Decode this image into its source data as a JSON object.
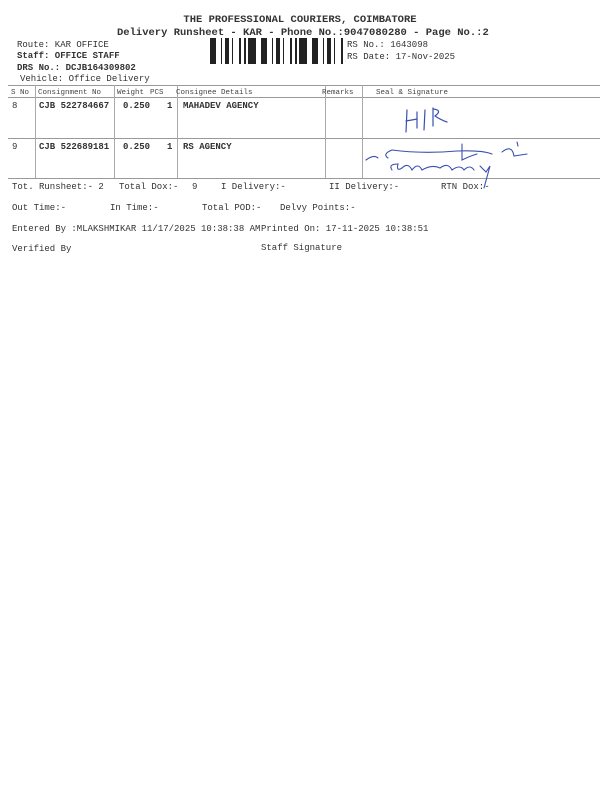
{
  "header": {
    "company": "THE PROFESSIONAL COURIERS, COIMBATORE",
    "subtitle": "Delivery Runsheet - KAR - Phone No.:9047080280 - Page No.:2",
    "route": "Route: KAR OFFICE",
    "staff": "Staff: OFFICE STAFF",
    "drs_no": "DRS No.: DCJB164309802",
    "vehicle": "Vehicle: Office Delivery",
    "rs_no": "RS No.: 1643098",
    "rs_date": "RS Date: 17-Nov-2025"
  },
  "table": {
    "columns": [
      "S No",
      "Consignment No",
      "Weight",
      "PCS",
      "Consignee Details",
      "Remarks",
      "Seal & Signature"
    ],
    "rows": [
      {
        "sno": "8",
        "consignment": "CJB 522784667",
        "weight": "0.250",
        "pcs": "1",
        "consignee": "MAHADEV AGENCY",
        "remarks": "",
        "signature": "H|R"
      },
      {
        "sno": "9",
        "consignment": "CJB 522689181",
        "weight": "0.250",
        "pcs": "1",
        "consignee": "RS AGENCY",
        "remarks": "",
        "signature": "53738-7339"
      }
    ]
  },
  "summary": {
    "tot_runsheet": "Tot. Runsheet:- 2",
    "total_dox": "Total Dox:-",
    "total_dox_value": "9",
    "i_delivery": "I Delivery:-",
    "ii_delivery": "II Delivery:-",
    "rtn_dox": "RTN Dox:-",
    "out_time": "Out Time:-",
    "in_time": "In Time:-",
    "total_pod": "Total POD:-",
    "delvy_points": "Delvy Points:-",
    "entered_by": "Entered By :MLAKSHMIKAR 11/17/2025 10:38:38 AM",
    "printed_on": "Printed On: 17-11-2025 10:38:51",
    "verified_by": "Verified By",
    "staff_signature": "Staff Signature"
  },
  "colors": {
    "ink": "#333333",
    "handwriting": "#3a4fb0"
  }
}
